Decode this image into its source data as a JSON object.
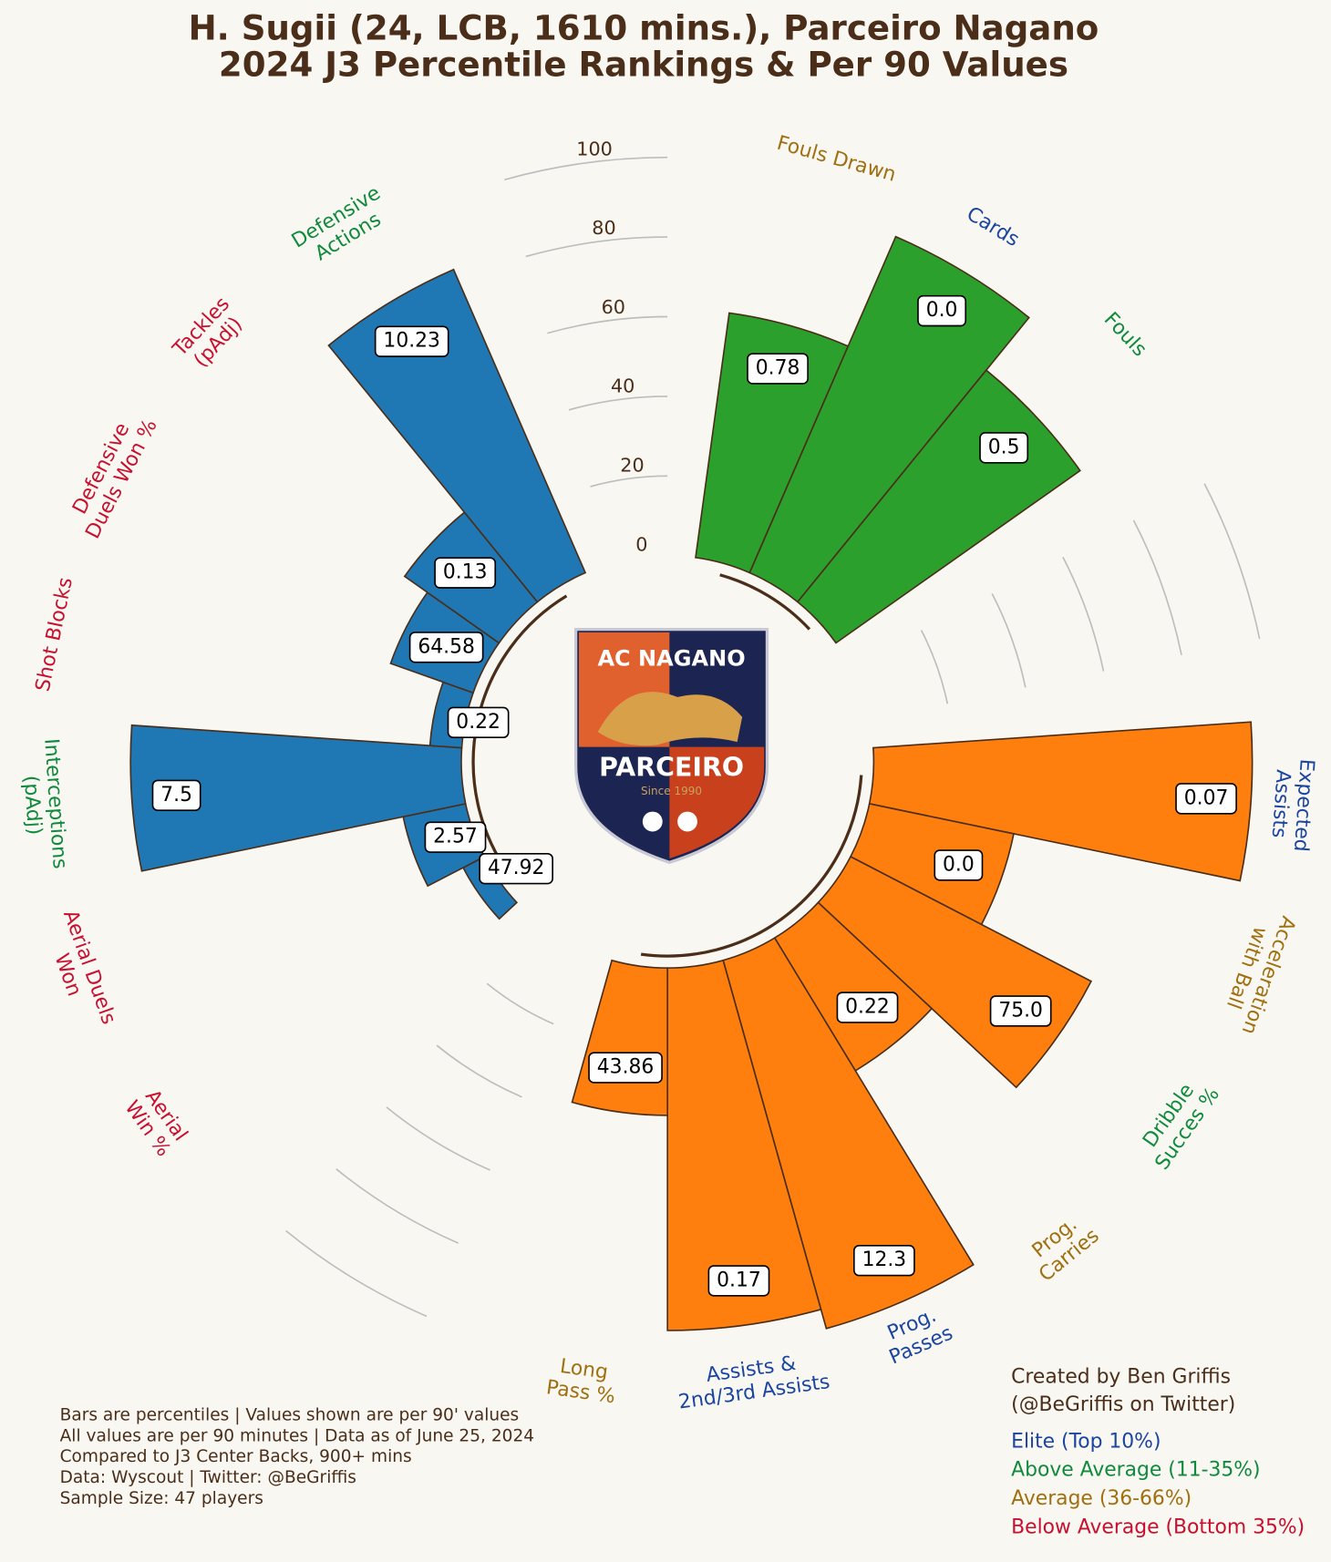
{
  "chart_data": {
    "type": "pizza",
    "title": [
      "H. Sugii (24, LCB, 1610 mins.), Parceiro Nagano",
      "2024 J3 Percentile Rankings & Per 90 Values"
    ],
    "rlim": [
      0,
      100
    ],
    "rticks": [
      0,
      20,
      40,
      60,
      80,
      100
    ],
    "groups": [
      {
        "color": "#2ca02c",
        "categories": [
          "Fouls Drawn",
          "Cards",
          "Fouls"
        ],
        "values": [
          62,
          92,
          75
        ],
        "per90_labels": [
          "0.78",
          "0.0",
          "0.5"
        ],
        "label_colors": [
          "#a07010",
          "#1a45a0",
          "#108a3c"
        ]
      },
      {
        "color": "#ff7f0e",
        "categories": [
          "Expected\nAssists",
          "Acceleration\nwith Ball",
          "Dribble\nSucces %",
          "Prog.\nCarries",
          "Prog.\nPasses",
          "Assists &\n2nd/3rd Assists",
          "Long\nPass %"
        ],
        "values": [
          95,
          37,
          68,
          39,
          96,
          91,
          37
        ],
        "per90_labels": [
          "0.07",
          "0.0",
          "75.0",
          "0.22",
          "12.3",
          "0.17",
          "43.86"
        ],
        "label_colors": [
          "#1a45a0",
          "#a07010",
          "#108a3c",
          "#a07010",
          "#1a45a0",
          "#1a45a0",
          "#a07010"
        ]
      },
      {
        "color": "#1f77b4",
        "categories": [
          "Aerial\nWin %",
          "Aerial Duels\nWon",
          "Interceptions\n(pAdj)",
          "Shot Blocks",
          "Defensive\nDuels Won %",
          "Tackles\n(pAdj)",
          "Defensive\nActions"
        ],
        "values": [
          6,
          16,
          83,
          8,
          22,
          29,
          83
        ],
        "per90_labels": [
          "47.92",
          "2.57",
          "7.5",
          "0.22",
          "64.58",
          "0.13",
          "10.23"
        ],
        "label_colors": [
          "#c8102e",
          "#c8102e",
          "#108a3c",
          "#c8102e",
          "#c8102e",
          "#c8102e",
          "#108a3c"
        ]
      }
    ]
  },
  "logo": {
    "top": "AC NAGANO",
    "bottom": "PARCEIRO",
    "since": "Since 1990"
  },
  "notes": [
    "Bars are percentiles | Values shown are per 90' values",
    "All values are per 90 minutes | Data as of June 25, 2024",
    "Compared to J3 Center Backs, 900+ mins",
    "Data: Wyscout | Twitter: @BeGriffis",
    "Sample Size: 47 players"
  ],
  "credit": [
    "Created by Ben Griffis",
    "(@BeGriffis on Twitter)"
  ],
  "legend": [
    {
      "name": "Elite (Top 10%)",
      "color": "#1a45a0"
    },
    {
      "name": "Above Average (11-35%)",
      "color": "#108a3c"
    },
    {
      "name": "Average (36-66%)",
      "color": "#a07010"
    },
    {
      "name": "Below Average (Bottom 35%)",
      "color": "#c8102e"
    }
  ]
}
